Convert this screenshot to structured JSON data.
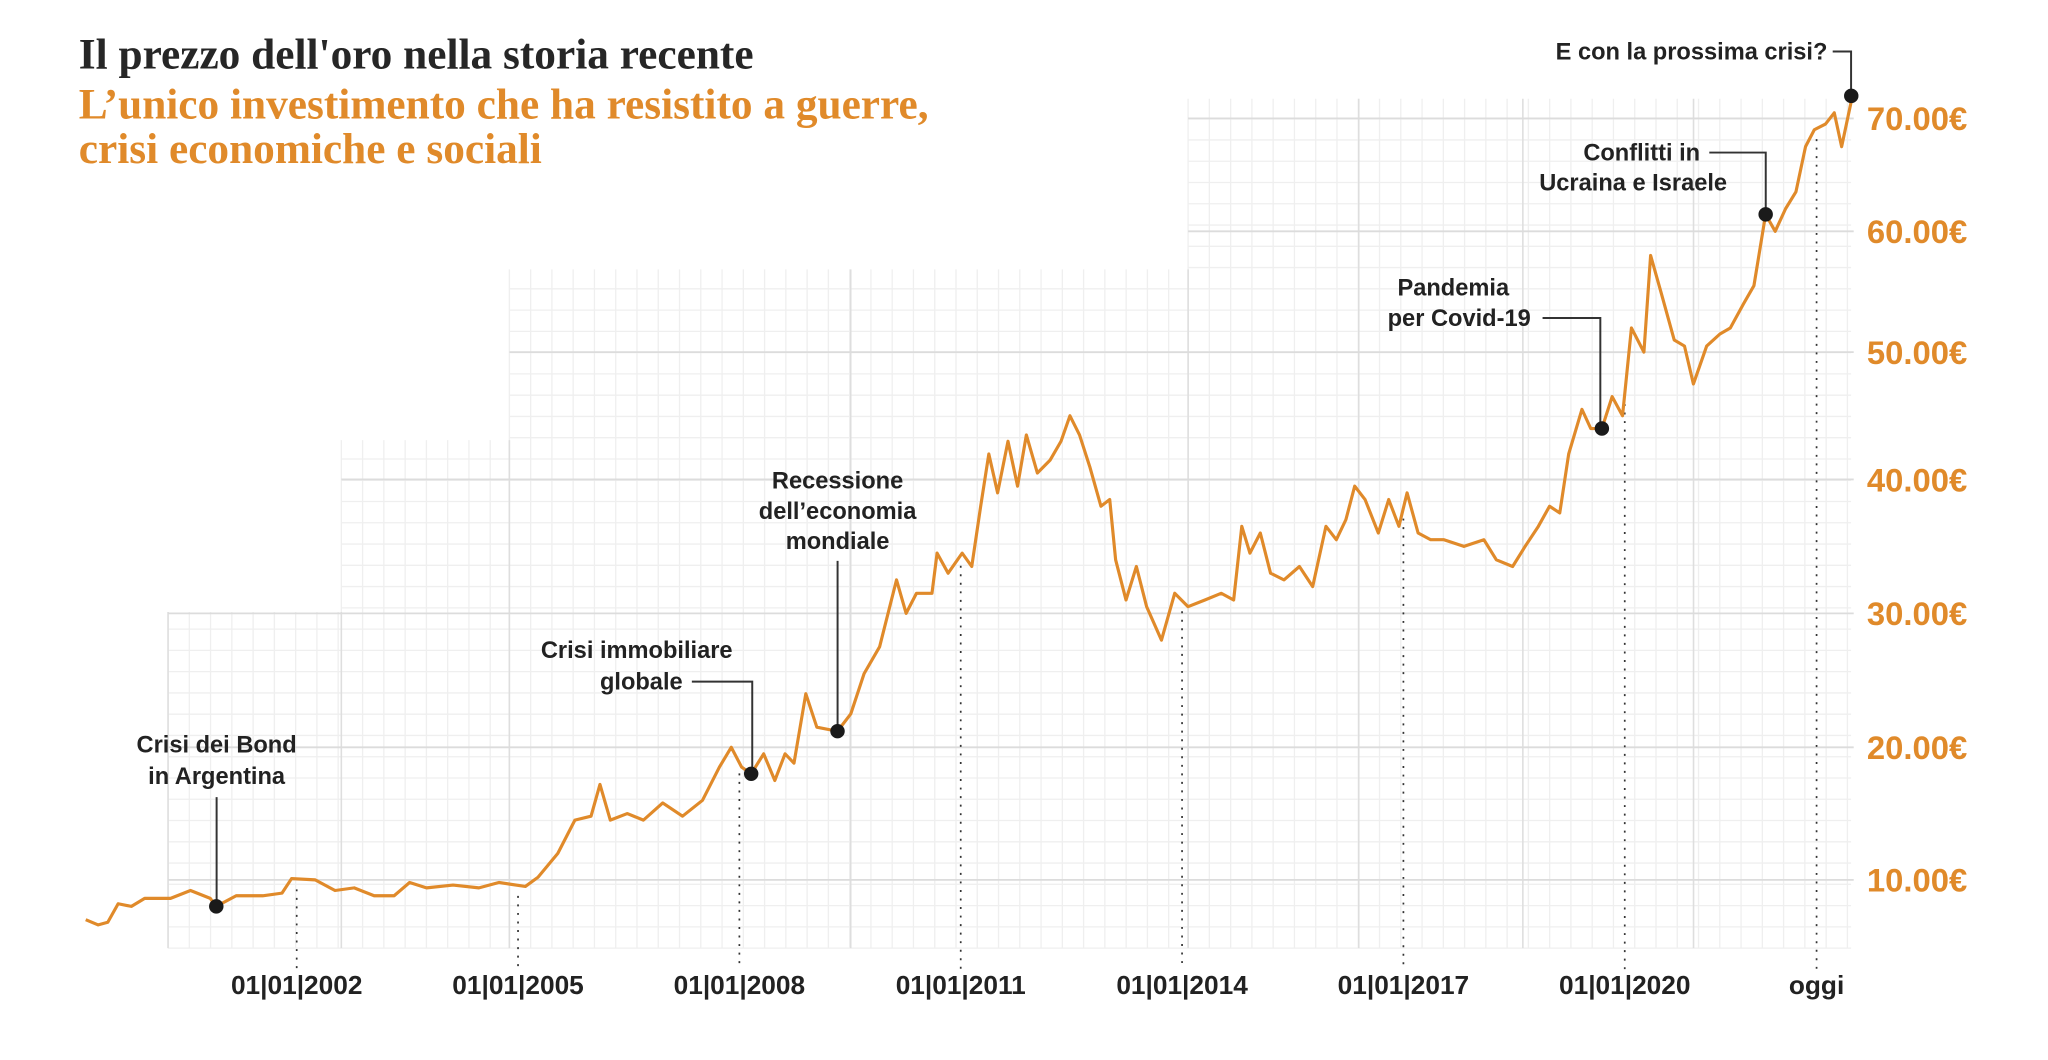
{
  "header": {
    "title": "Il prezzo dell'oro nella storia recente",
    "subtitle_line1": "L’unico investimento che ha resistito a guerre,",
    "subtitle_line2": "crisi economiche e sociali"
  },
  "colors": {
    "line": "#e08a2a",
    "title": "#262626",
    "accent": "#e08a2a",
    "marker": "#1a1a1a",
    "grid": "#ececec"
  },
  "chart_data": {
    "type": "line",
    "title": "Il prezzo dell'oro nella storia recente",
    "xlabel": "",
    "ylabel": "",
    "ylim": [
      5,
      72
    ],
    "grid": true,
    "y_ticks": [
      {
        "value": 10,
        "label": "10.00€"
      },
      {
        "value": 20,
        "label": "20.00€"
      },
      {
        "value": 30,
        "label": "30.00€"
      },
      {
        "value": 40,
        "label": "40.00€"
      },
      {
        "value": 50,
        "label": "50.00€"
      },
      {
        "value": 60,
        "label": "60.00€"
      },
      {
        "value": 70,
        "label": "70.00€"
      }
    ],
    "x_ticks": [
      {
        "value": 2002.0,
        "label": "01|01|2002"
      },
      {
        "value": 2005.0,
        "label": "01|01|2005"
      },
      {
        "value": 2008.0,
        "label": "01|01|2008"
      },
      {
        "value": 2011.0,
        "label": "01|01|2011"
      },
      {
        "value": 2014.0,
        "label": "01|01|2014"
      },
      {
        "value": 2017.0,
        "label": "01|01|2017"
      },
      {
        "value": 2020.0,
        "label": "01|01|2020"
      },
      {
        "value": 2022.6,
        "label": "oggi"
      }
    ],
    "x": [
      1999.14,
      1999.31,
      1999.44,
      1999.58,
      1999.76,
      1999.94,
      2000.29,
      2000.56,
      2000.83,
      2000.91,
      2001.18,
      2001.54,
      2001.8,
      2001.93,
      2002.25,
      2002.52,
      2002.78,
      2003.05,
      2003.32,
      2003.53,
      2003.76,
      2004.12,
      2004.47,
      2004.74,
      2005.1,
      2005.27,
      2005.54,
      2005.77,
      2005.99,
      2006.11,
      2006.25,
      2006.48,
      2006.7,
      2006.96,
      2007.23,
      2007.5,
      2007.73,
      2007.89,
      2008.03,
      2008.16,
      2008.33,
      2008.48,
      2008.62,
      2008.74,
      2008.9,
      2009.05,
      2009.33,
      2009.51,
      2009.69,
      2009.9,
      2010.13,
      2010.26,
      2010.4,
      2010.61,
      2010.68,
      2010.83,
      2011.02,
      2011.15,
      2011.27,
      2011.38,
      2011.5,
      2011.64,
      2011.77,
      2011.89,
      2012.04,
      2012.21,
      2012.36,
      2012.48,
      2012.61,
      2012.75,
      2012.9,
      2013.02,
      2013.1,
      2013.24,
      2013.38,
      2013.52,
      2013.72,
      2013.9,
      2014.08,
      2014.31,
      2014.53,
      2014.7,
      2014.81,
      2014.92,
      2015.06,
      2015.2,
      2015.38,
      2015.59,
      2015.77,
      2015.95,
      2016.09,
      2016.22,
      2016.34,
      2016.48,
      2016.66,
      2016.8,
      2016.94,
      2017.05,
      2017.2,
      2017.37,
      2017.55,
      2017.82,
      2018.09,
      2018.26,
      2018.48,
      2018.65,
      2018.83,
      2018.98,
      2019.12,
      2019.24,
      2019.42,
      2019.54,
      2019.69,
      2019.83,
      2019.97,
      2020.09,
      2020.26,
      2020.35,
      2020.49,
      2020.67,
      2020.81,
      2020.93,
      2021.11,
      2021.29,
      2021.43,
      2021.61,
      2021.75,
      2021.91,
      2022.04,
      2022.18,
      2022.32,
      2022.45,
      2022.57,
      2022.72,
      2022.84,
      2022.94,
      2023.07
    ],
    "series": [
      {
        "values": [
          7.0,
          6.6,
          6.8,
          8.2,
          8.0,
          8.6,
          8.6,
          9.2,
          8.6,
          8.0,
          8.8,
          8.8,
          9.0,
          10.1,
          10.0,
          9.2,
          9.4,
          8.8,
          8.8,
          9.8,
          9.4,
          9.6,
          9.4,
          9.8,
          9.5,
          10.2,
          12.0,
          14.5,
          14.8,
          17.2,
          14.5,
          15.0,
          14.5,
          15.8,
          14.8,
          16.0,
          18.5,
          20.0,
          18.5,
          18.0,
          19.5,
          17.5,
          19.5,
          18.8,
          24.0,
          21.5,
          21.2,
          22.5,
          25.5,
          27.5,
          32.5,
          30.0,
          31.5,
          31.5,
          34.5,
          33.0,
          34.5,
          33.5,
          38.0,
          42.0,
          39.0,
          43.0,
          39.5,
          43.5,
          40.5,
          41.5,
          43.0,
          45.0,
          43.5,
          41.0,
          38.0,
          38.5,
          34.0,
          31.0,
          33.5,
          30.5,
          28.0,
          31.5,
          30.5,
          31.0,
          31.5,
          31.0,
          36.5,
          34.5,
          36.0,
          33.0,
          32.5,
          33.5,
          32.0,
          36.5,
          35.5,
          37.0,
          39.5,
          38.5,
          36.0,
          38.5,
          36.5,
          39.0,
          36.0,
          35.5,
          35.5,
          35.0,
          35.5,
          34.0,
          33.5,
          35.0,
          36.5,
          38.0,
          37.5,
          42.0,
          45.5,
          44.0,
          44.0,
          46.5,
          45.0,
          52.0,
          50.0,
          58.0,
          55.0,
          51.0,
          50.5,
          47.5,
          50.5,
          51.5,
          52.0,
          54.0,
          55.5,
          61.5,
          60.0,
          62.0,
          63.5,
          67.5,
          69.0,
          69.5,
          70.5,
          67.5,
          71.5
        ]
      }
    ],
    "annotations": [
      {
        "lines": [
          "Crisi dei Bond",
          "in Argentina"
        ],
        "x": 2000.91,
        "y": 8.0
      },
      {
        "lines": [
          "Crisi immobiliare",
          "globale"
        ],
        "x": 2008.16,
        "y": 18.0
      },
      {
        "lines": [
          "Recessione",
          "dell’economia",
          "mondiale"
        ],
        "x": 2009.33,
        "y": 21.2
      },
      {
        "lines": [
          "Pandemia",
          "per Covid-19"
        ],
        "x": 2019.69,
        "y": 44.0
      },
      {
        "lines": [
          "Conflitti in",
          "Ucraina e Israele"
        ],
        "x": 2021.91,
        "y": 61.5
      },
      {
        "lines": [
          "E con la prossima crisi?"
        ],
        "x": 2023.07,
        "y": 72.0
      }
    ]
  }
}
